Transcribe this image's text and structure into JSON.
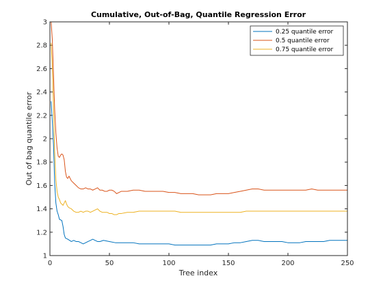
{
  "chart_data": {
    "type": "line",
    "title": "Cumulative, Out-of-Bag, Quantile Regression Error",
    "xlabel": "Tree index",
    "ylabel": "Out of bag quantile error",
    "xlim": [
      0,
      250
    ],
    "ylim": [
      1,
      3
    ],
    "xticks": [
      "0",
      "50",
      "100",
      "150",
      "200",
      "250"
    ],
    "yticks": [
      "1",
      "1.2",
      "1.4",
      "1.6",
      "1.8",
      "2",
      "2.2",
      "2.4",
      "2.6",
      "2.8",
      "3"
    ],
    "xtick_values": [
      0,
      50,
      100,
      150,
      200,
      250
    ],
    "ytick_values": [
      1,
      1.2,
      1.4,
      1.6,
      1.8,
      2,
      2.2,
      2.4,
      2.6,
      2.8,
      3
    ],
    "grid": false,
    "legend_position": "top-right",
    "series": [
      {
        "name": "0.25 quantile error",
        "color": "#0072BD",
        "points": [
          [
            1,
            2.32
          ],
          [
            2,
            2.15
          ],
          [
            3,
            1.95
          ],
          [
            4,
            1.62
          ],
          [
            5,
            1.45
          ],
          [
            6,
            1.38
          ],
          [
            7,
            1.35
          ],
          [
            8,
            1.31
          ],
          [
            10,
            1.3
          ],
          [
            11,
            1.25
          ],
          [
            12,
            1.18
          ],
          [
            13,
            1.15
          ],
          [
            15,
            1.14
          ],
          [
            18,
            1.12
          ],
          [
            20,
            1.13
          ],
          [
            22,
            1.12
          ],
          [
            24,
            1.12
          ],
          [
            26,
            1.11
          ],
          [
            28,
            1.1
          ],
          [
            30,
            1.11
          ],
          [
            32,
            1.12
          ],
          [
            34,
            1.13
          ],
          [
            36,
            1.14
          ],
          [
            38,
            1.13
          ],
          [
            40,
            1.12
          ],
          [
            42,
            1.12
          ],
          [
            45,
            1.13
          ],
          [
            50,
            1.12
          ],
          [
            55,
            1.11
          ],
          [
            60,
            1.11
          ],
          [
            65,
            1.11
          ],
          [
            70,
            1.11
          ],
          [
            75,
            1.1
          ],
          [
            80,
            1.1
          ],
          [
            85,
            1.1
          ],
          [
            90,
            1.1
          ],
          [
            95,
            1.1
          ],
          [
            100,
            1.1
          ],
          [
            105,
            1.09
          ],
          [
            110,
            1.09
          ],
          [
            115,
            1.09
          ],
          [
            120,
            1.09
          ],
          [
            125,
            1.09
          ],
          [
            130,
            1.09
          ],
          [
            135,
            1.09
          ],
          [
            140,
            1.1
          ],
          [
            145,
            1.1
          ],
          [
            150,
            1.1
          ],
          [
            155,
            1.11
          ],
          [
            160,
            1.11
          ],
          [
            165,
            1.12
          ],
          [
            170,
            1.13
          ],
          [
            175,
            1.13
          ],
          [
            180,
            1.12
          ],
          [
            185,
            1.12
          ],
          [
            190,
            1.12
          ],
          [
            195,
            1.12
          ],
          [
            200,
            1.11
          ],
          [
            205,
            1.11
          ],
          [
            210,
            1.11
          ],
          [
            215,
            1.12
          ],
          [
            220,
            1.12
          ],
          [
            225,
            1.12
          ],
          [
            230,
            1.12
          ],
          [
            235,
            1.13
          ],
          [
            240,
            1.13
          ],
          [
            245,
            1.13
          ],
          [
            250,
            1.13
          ]
        ]
      },
      {
        "name": "0.5 quantile error",
        "color": "#D95319",
        "points": [
          [
            1,
            3.0
          ],
          [
            2,
            2.85
          ],
          [
            3,
            2.55
          ],
          [
            4,
            2.25
          ],
          [
            5,
            2.05
          ],
          [
            6,
            1.92
          ],
          [
            7,
            1.85
          ],
          [
            8,
            1.84
          ],
          [
            9,
            1.86
          ],
          [
            10,
            1.87
          ],
          [
            11,
            1.86
          ],
          [
            12,
            1.82
          ],
          [
            13,
            1.72
          ],
          [
            14,
            1.67
          ],
          [
            15,
            1.66
          ],
          [
            16,
            1.68
          ],
          [
            18,
            1.64
          ],
          [
            20,
            1.62
          ],
          [
            22,
            1.6
          ],
          [
            24,
            1.58
          ],
          [
            26,
            1.57
          ],
          [
            28,
            1.57
          ],
          [
            30,
            1.58
          ],
          [
            32,
            1.57
          ],
          [
            34,
            1.57
          ],
          [
            36,
            1.56
          ],
          [
            38,
            1.57
          ],
          [
            40,
            1.58
          ],
          [
            42,
            1.56
          ],
          [
            44,
            1.56
          ],
          [
            46,
            1.55
          ],
          [
            48,
            1.55
          ],
          [
            50,
            1.56
          ],
          [
            52,
            1.56
          ],
          [
            54,
            1.55
          ],
          [
            56,
            1.53
          ],
          [
            58,
            1.54
          ],
          [
            60,
            1.55
          ],
          [
            65,
            1.55
          ],
          [
            70,
            1.56
          ],
          [
            75,
            1.56
          ],
          [
            80,
            1.55
          ],
          [
            85,
            1.55
          ],
          [
            90,
            1.55
          ],
          [
            95,
            1.55
          ],
          [
            100,
            1.54
          ],
          [
            105,
            1.54
          ],
          [
            110,
            1.53
          ],
          [
            115,
            1.53
          ],
          [
            120,
            1.53
          ],
          [
            125,
            1.52
          ],
          [
            130,
            1.52
          ],
          [
            135,
            1.52
          ],
          [
            140,
            1.53
          ],
          [
            145,
            1.53
          ],
          [
            150,
            1.53
          ],
          [
            155,
            1.54
          ],
          [
            160,
            1.55
          ],
          [
            165,
            1.56
          ],
          [
            170,
            1.57
          ],
          [
            175,
            1.57
          ],
          [
            180,
            1.56
          ],
          [
            185,
            1.56
          ],
          [
            190,
            1.56
          ],
          [
            195,
            1.56
          ],
          [
            200,
            1.56
          ],
          [
            205,
            1.56
          ],
          [
            210,
            1.56
          ],
          [
            215,
            1.56
          ],
          [
            220,
            1.57
          ],
          [
            225,
            1.56
          ],
          [
            230,
            1.56
          ],
          [
            235,
            1.56
          ],
          [
            240,
            1.56
          ],
          [
            245,
            1.56
          ],
          [
            250,
            1.56
          ]
        ]
      },
      {
        "name": "0.75 quantile error",
        "color": "#EDB120",
        "points": [
          [
            1,
            2.82
          ],
          [
            2,
            2.62
          ],
          [
            3,
            2.28
          ],
          [
            4,
            1.88
          ],
          [
            5,
            1.65
          ],
          [
            6,
            1.55
          ],
          [
            7,
            1.5
          ],
          [
            8,
            1.48
          ],
          [
            9,
            1.45
          ],
          [
            10,
            1.44
          ],
          [
            11,
            1.43
          ],
          [
            12,
            1.45
          ],
          [
            13,
            1.47
          ],
          [
            14,
            1.44
          ],
          [
            15,
            1.42
          ],
          [
            16,
            1.41
          ],
          [
            18,
            1.4
          ],
          [
            20,
            1.38
          ],
          [
            22,
            1.37
          ],
          [
            24,
            1.37
          ],
          [
            26,
            1.38
          ],
          [
            28,
            1.37
          ],
          [
            30,
            1.38
          ],
          [
            32,
            1.38
          ],
          [
            34,
            1.37
          ],
          [
            36,
            1.38
          ],
          [
            38,
            1.39
          ],
          [
            40,
            1.4
          ],
          [
            42,
            1.38
          ],
          [
            44,
            1.37
          ],
          [
            46,
            1.37
          ],
          [
            48,
            1.37
          ],
          [
            50,
            1.36
          ],
          [
            52,
            1.36
          ],
          [
            54,
            1.35
          ],
          [
            56,
            1.35
          ],
          [
            58,
            1.36
          ],
          [
            60,
            1.36
          ],
          [
            65,
            1.37
          ],
          [
            70,
            1.37
          ],
          [
            75,
            1.38
          ],
          [
            80,
            1.38
          ],
          [
            85,
            1.38
          ],
          [
            90,
            1.38
          ],
          [
            95,
            1.38
          ],
          [
            100,
            1.38
          ],
          [
            105,
            1.38
          ],
          [
            110,
            1.37
          ],
          [
            115,
            1.37
          ],
          [
            120,
            1.37
          ],
          [
            125,
            1.37
          ],
          [
            130,
            1.37
          ],
          [
            135,
            1.37
          ],
          [
            140,
            1.37
          ],
          [
            145,
            1.37
          ],
          [
            150,
            1.37
          ],
          [
            155,
            1.37
          ],
          [
            160,
            1.37
          ],
          [
            165,
            1.38
          ],
          [
            170,
            1.38
          ],
          [
            175,
            1.38
          ],
          [
            180,
            1.38
          ],
          [
            185,
            1.38
          ],
          [
            190,
            1.38
          ],
          [
            195,
            1.38
          ],
          [
            200,
            1.38
          ],
          [
            205,
            1.38
          ],
          [
            210,
            1.38
          ],
          [
            215,
            1.38
          ],
          [
            220,
            1.38
          ],
          [
            225,
            1.38
          ],
          [
            230,
            1.38
          ],
          [
            235,
            1.38
          ],
          [
            240,
            1.38
          ],
          [
            245,
            1.38
          ],
          [
            250,
            1.38
          ]
        ]
      }
    ]
  }
}
